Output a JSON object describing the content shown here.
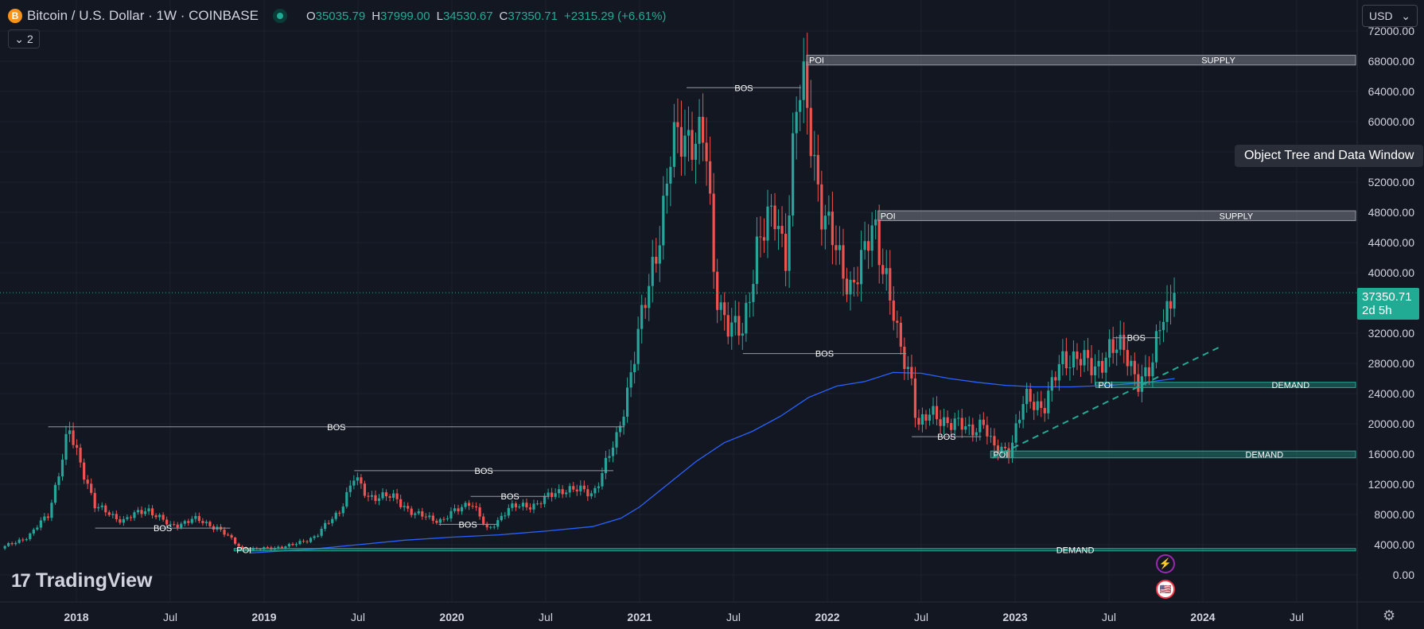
{
  "header": {
    "symbol_icon": "B",
    "title": "Bitcoin / U.S. Dollar · 1W · COINBASE",
    "ohlc": [
      {
        "k": "O",
        "v": "35035.79"
      },
      {
        "k": "H",
        "v": "37999.00"
      },
      {
        "k": "L",
        "v": "34530.67"
      },
      {
        "k": "C",
        "v": "37350.71"
      }
    ],
    "change": "+2315.29 (+6.61%)",
    "indicators_count": "2",
    "chevron": "⌄"
  },
  "currency": {
    "label": "USD",
    "chevron": "⌄"
  },
  "tooltip": "Object Tree and Data Window",
  "price_tag": {
    "price": "37350.71",
    "countdown": "2d 5h"
  },
  "branding": {
    "logo_mark": "17",
    "name": "TradingView"
  },
  "icons": {
    "flash": "⚡",
    "flag": "🇺🇸",
    "settings": "⚙"
  },
  "colors": {
    "background": "#131722",
    "up": "#26a69a",
    "down": "#ef5350",
    "ma_line": "#2962ff",
    "trendline": "#22ab94",
    "accent_tag": "#22ab94"
  },
  "chart_data": {
    "type": "candlestick",
    "symbol": "BTCUSD",
    "interval": "1W",
    "exchange": "COINBASE",
    "ylim": [
      0,
      72000
    ],
    "y_ticks": [
      "72000.00",
      "68000.00",
      "64000.00",
      "60000.00",
      "56000.00",
      "52000.00",
      "48000.00",
      "44000.00",
      "40000.00",
      "36000.00",
      "32000.00",
      "28000.00",
      "24000.00",
      "20000.00",
      "16000.00",
      "12000.00",
      "8000.00",
      "4000.00",
      "0.00"
    ],
    "x_ticks": [
      {
        "label": "2018",
        "t": 2018.0,
        "bold": true
      },
      {
        "label": "Jul",
        "t": 2018.5,
        "bold": false
      },
      {
        "label": "2019",
        "t": 2019.0,
        "bold": true
      },
      {
        "label": "Jul",
        "t": 2019.5,
        "bold": false
      },
      {
        "label": "2020",
        "t": 2020.0,
        "bold": true
      },
      {
        "label": "Jul",
        "t": 2020.5,
        "bold": false
      },
      {
        "label": "2021",
        "t": 2021.0,
        "bold": true
      },
      {
        "label": "Jul",
        "t": 2021.5,
        "bold": false
      },
      {
        "label": "2022",
        "t": 2022.0,
        "bold": true
      },
      {
        "label": "Jul",
        "t": 2022.5,
        "bold": false
      },
      {
        "label": "2023",
        "t": 2023.0,
        "bold": true
      },
      {
        "label": "Jul",
        "t": 2023.5,
        "bold": false
      },
      {
        "label": "2024",
        "t": 2024.0,
        "bold": true
      },
      {
        "label": "Jul",
        "t": 2024.5,
        "bold": false
      }
    ],
    "last_price": 37350.71,
    "price_path": [
      [
        2017.6,
        3500
      ],
      [
        2017.75,
        5200
      ],
      [
        2017.85,
        8000
      ],
      [
        2017.96,
        19000
      ],
      [
        2018.05,
        13000
      ],
      [
        2018.1,
        9000
      ],
      [
        2018.25,
        7200
      ],
      [
        2018.38,
        8800
      ],
      [
        2018.5,
        6400
      ],
      [
        2018.62,
        7400
      ],
      [
        2018.75,
        6300
      ],
      [
        2018.88,
        3500
      ],
      [
        2018.97,
        3400
      ],
      [
        2019.15,
        3900
      ],
      [
        2019.28,
        5200
      ],
      [
        2019.4,
        8500
      ],
      [
        2019.48,
        12800
      ],
      [
        2019.55,
        10500
      ],
      [
        2019.7,
        10200
      ],
      [
        2019.8,
        8000
      ],
      [
        2019.95,
        7200
      ],
      [
        2020.1,
        9900
      ],
      [
        2020.19,
        5800
      ],
      [
        2020.3,
        8800
      ],
      [
        2020.45,
        9400
      ],
      [
        2020.6,
        11500
      ],
      [
        2020.75,
        10800
      ],
      [
        2020.88,
        18000
      ],
      [
        2020.97,
        29000
      ],
      [
        2021.05,
        38000
      ],
      [
        2021.12,
        48000
      ],
      [
        2021.17,
        56000
      ],
      [
        2021.28,
        59000
      ],
      [
        2021.35,
        57000
      ],
      [
        2021.4,
        38000
      ],
      [
        2021.48,
        33000
      ],
      [
        2021.55,
        31500
      ],
      [
        2021.63,
        45000
      ],
      [
        2021.72,
        47000
      ],
      [
        2021.78,
        43000
      ],
      [
        2021.83,
        61500
      ],
      [
        2021.87,
        64000
      ],
      [
        2021.92,
        57000
      ],
      [
        2021.97,
        49000
      ],
      [
        2022.05,
        42000
      ],
      [
        2022.12,
        38500
      ],
      [
        2022.2,
        42000
      ],
      [
        2022.25,
        46500
      ],
      [
        2022.32,
        39000
      ],
      [
        2022.38,
        30000
      ],
      [
        2022.45,
        26000
      ],
      [
        2022.48,
        20000
      ],
      [
        2022.55,
        21000
      ],
      [
        2022.65,
        20500
      ],
      [
        2022.75,
        19000
      ],
      [
        2022.83,
        20500
      ],
      [
        2022.88,
        16500
      ],
      [
        2022.97,
        16700
      ],
      [
        2023.05,
        23000
      ],
      [
        2023.15,
        22500
      ],
      [
        2023.25,
        28000
      ],
      [
        2023.33,
        29500
      ],
      [
        2023.42,
        26500
      ],
      [
        2023.5,
        30500
      ],
      [
        2023.58,
        29300
      ],
      [
        2023.66,
        26000
      ],
      [
        2023.73,
        27000
      ],
      [
        2023.78,
        34500
      ],
      [
        2023.85,
        37350
      ]
    ],
    "ma_line": [
      [
        2018.92,
        2900
      ],
      [
        2019.25,
        3400
      ],
      [
        2019.5,
        4000
      ],
      [
        2019.75,
        4600
      ],
      [
        2020.0,
        5000
      ],
      [
        2020.25,
        5300
      ],
      [
        2020.5,
        5800
      ],
      [
        2020.75,
        6400
      ],
      [
        2020.9,
        7500
      ],
      [
        2021.0,
        9000
      ],
      [
        2021.15,
        12000
      ],
      [
        2021.3,
        15000
      ],
      [
        2021.45,
        17500
      ],
      [
        2021.6,
        19000
      ],
      [
        2021.75,
        21000
      ],
      [
        2021.9,
        23500
      ],
      [
        2022.05,
        25000
      ],
      [
        2022.2,
        25600
      ],
      [
        2022.35,
        26800
      ],
      [
        2022.5,
        26700
      ],
      [
        2022.65,
        26000
      ],
      [
        2022.8,
        25500
      ],
      [
        2022.95,
        25100
      ],
      [
        2023.1,
        24900
      ],
      [
        2023.3,
        24900
      ],
      [
        2023.5,
        25100
      ],
      [
        2023.7,
        25500
      ],
      [
        2023.85,
        26000
      ]
    ],
    "trendline": {
      "points": [
        [
          2022.88,
          15500
        ],
        [
          2024.1,
          30300
        ]
      ],
      "dashed": true
    },
    "annotations": [
      {
        "text": "BOS",
        "type": "bos",
        "x1": 2017.85,
        "x2": 2020.92,
        "y": 19600
      },
      {
        "text": "BOS",
        "type": "bos",
        "x1": 2018.1,
        "x2": 2018.82,
        "y": 6200
      },
      {
        "text": "BOS",
        "type": "bos",
        "x1": 2019.48,
        "x2": 2020.86,
        "y": 13800
      },
      {
        "text": "BOS",
        "type": "bos",
        "x1": 2020.1,
        "x2": 2020.52,
        "y": 10400
      },
      {
        "text": "BOS",
        "type": "bos",
        "x1": 2019.93,
        "x2": 2020.24,
        "y": 6700
      },
      {
        "text": "BOS",
        "type": "bos",
        "x1": 2021.25,
        "x2": 2021.86,
        "y": 64500
      },
      {
        "text": "BOS",
        "type": "bos",
        "x1": 2021.55,
        "x2": 2022.42,
        "y": 29300
      },
      {
        "text": "BOS",
        "type": "bos",
        "x1": 2022.45,
        "x2": 2022.82,
        "y": 18300
      },
      {
        "text": "BOS",
        "type": "bos",
        "x1": 2023.52,
        "x2": 2023.77,
        "y": 31400
      }
    ],
    "zones": [
      {
        "left_label": "POI",
        "right_label": "SUPPLY",
        "x1": 2021.89,
        "x2": 2024.87,
        "y_low": 67500,
        "y_high": 68800,
        "kind": "supply"
      },
      {
        "left_label": "POI",
        "right_label": "SUPPLY",
        "x1": 2022.27,
        "x2": 2024.87,
        "y_low": 46900,
        "y_high": 48200,
        "kind": "supply"
      },
      {
        "left_label": "POi",
        "right_label": "DEMAND",
        "x1": 2023.43,
        "x2": 2024.87,
        "y_low": 24800,
        "y_high": 25500,
        "kind": "demand"
      },
      {
        "left_label": "POI",
        "right_label": "DEMAND",
        "x1": 2022.87,
        "x2": 2024.87,
        "y_low": 15500,
        "y_high": 16400,
        "kind": "demand"
      },
      {
        "left_label": "POI",
        "right_label": "DEMAND",
        "x1": 2018.84,
        "x2": 2024.87,
        "y_low": 3200,
        "y_high": 3500,
        "kind": "demand"
      }
    ]
  }
}
